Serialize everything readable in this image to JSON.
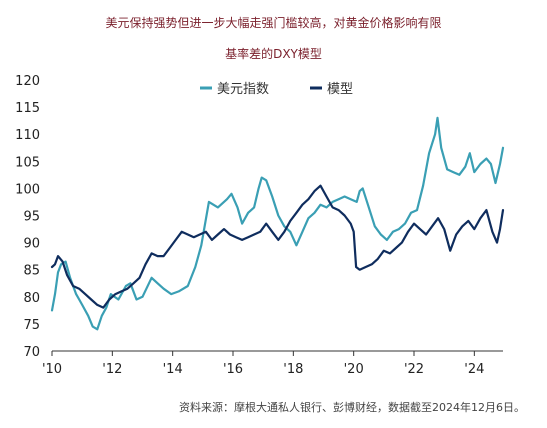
{
  "title_line1": "美元保持强势但进一步大幅走强门槛较高，对黄金价格影响有限",
  "title_line2": "基率差的DXY模型",
  "source": "资料来源：摩根大通私人银行、彭博财经，数据截至2024年12月6日。",
  "chart_data": {
    "type": "line",
    "title": "美元保持强势但进一步大幅走强门槛较高，对黄金价格影响有限",
    "subtitle": "基率差的DXY模型",
    "xlabel": "",
    "ylabel": "",
    "ylim": [
      70,
      120
    ],
    "yticks": [
      70,
      75,
      80,
      85,
      90,
      95,
      100,
      105,
      110,
      115,
      120
    ],
    "xlim": [
      2010.0,
      2024.95
    ],
    "xticks": [
      2010,
      2012,
      2014,
      2016,
      2018,
      2020,
      2022,
      2024
    ],
    "xtick_labels": [
      "'10",
      "'12",
      "'14",
      "'16",
      "'18",
      "'20",
      "'22",
      "'24"
    ],
    "grid": false,
    "legend_position": "top-left",
    "series": [
      {
        "name": "美元指数",
        "color": "#3a9fb4",
        "x": [
          2010.0,
          2010.1,
          2010.2,
          2010.3,
          2010.45,
          2010.6,
          2010.8,
          2010.9,
          2011.0,
          2011.2,
          2011.35,
          2011.5,
          2011.65,
          2011.8,
          2011.95,
          2012.2,
          2012.45,
          2012.6,
          2012.8,
          2013.0,
          2013.3,
          2013.5,
          2013.7,
          2013.95,
          2014.2,
          2014.5,
          2014.75,
          2014.95,
          2015.2,
          2015.5,
          2015.8,
          2015.95,
          2016.15,
          2016.3,
          2016.5,
          2016.7,
          2016.85,
          2016.95,
          2017.1,
          2017.3,
          2017.5,
          2017.7,
          2017.9,
          2018.1,
          2018.3,
          2018.5,
          2018.7,
          2018.9,
          2019.1,
          2019.3,
          2019.5,
          2019.7,
          2019.9,
          2020.1,
          2020.2,
          2020.3,
          2020.5,
          2020.7,
          2020.9,
          2021.1,
          2021.3,
          2021.5,
          2021.7,
          2021.9,
          2022.1,
          2022.3,
          2022.5,
          2022.7,
          2022.78,
          2022.9,
          2023.1,
          2023.3,
          2023.5,
          2023.7,
          2023.85,
          2024.0,
          2024.2,
          2024.4,
          2024.55,
          2024.7,
          2024.85,
          2024.95
        ],
        "y": [
          77.5,
          80.5,
          84.5,
          86.0,
          86.5,
          83.5,
          80.5,
          79.5,
          78.5,
          76.5,
          74.5,
          74.0,
          76.5,
          78.0,
          80.5,
          79.5,
          82.0,
          82.5,
          79.5,
          80.0,
          83.5,
          82.5,
          81.5,
          80.5,
          81.0,
          82.0,
          85.5,
          89.5,
          97.5,
          96.5,
          98.0,
          99.0,
          96.5,
          93.5,
          95.5,
          96.5,
          100.0,
          102.0,
          101.5,
          98.5,
          95.0,
          93.0,
          92.0,
          89.5,
          92.0,
          94.5,
          95.5,
          97.0,
          96.5,
          97.5,
          98.0,
          98.5,
          98.0,
          97.5,
          99.5,
          100.0,
          96.5,
          93.0,
          91.5,
          90.5,
          92.0,
          92.5,
          93.5,
          95.5,
          96.0,
          100.5,
          106.5,
          110.0,
          113.0,
          107.5,
          103.5,
          103.0,
          102.5,
          104.0,
          106.5,
          103.0,
          104.5,
          105.5,
          104.5,
          101.0,
          104.5,
          107.5
        ]
      },
      {
        "name": "模型",
        "color": "#0f2d5e",
        "x": [
          2010.0,
          2010.1,
          2010.2,
          2010.35,
          2010.5,
          2010.7,
          2010.9,
          2011.1,
          2011.3,
          2011.5,
          2011.7,
          2011.9,
          2012.1,
          2012.3,
          2012.5,
          2012.7,
          2012.9,
          2013.1,
          2013.3,
          2013.5,
          2013.7,
          2013.9,
          2014.1,
          2014.3,
          2014.5,
          2014.7,
          2014.9,
          2015.1,
          2015.3,
          2015.5,
          2015.7,
          2015.9,
          2016.1,
          2016.3,
          2016.5,
          2016.7,
          2016.9,
          2017.1,
          2017.3,
          2017.5,
          2017.7,
          2017.9,
          2018.1,
          2018.3,
          2018.5,
          2018.7,
          2018.9,
          2019.1,
          2019.3,
          2019.5,
          2019.7,
          2019.9,
          2020.0,
          2020.08,
          2020.2,
          2020.4,
          2020.6,
          2020.8,
          2021.0,
          2021.2,
          2021.4,
          2021.6,
          2021.8,
          2022.0,
          2022.2,
          2022.4,
          2022.6,
          2022.8,
          2023.0,
          2023.2,
          2023.4,
          2023.6,
          2023.8,
          2024.0,
          2024.2,
          2024.4,
          2024.6,
          2024.75,
          2024.85,
          2024.95
        ],
        "y": [
          85.5,
          86.0,
          87.5,
          86.5,
          84.0,
          82.0,
          81.5,
          80.5,
          79.5,
          78.5,
          78.0,
          79.5,
          80.5,
          81.0,
          81.5,
          82.5,
          83.5,
          86.0,
          88.0,
          87.5,
          87.5,
          89.0,
          90.5,
          92.0,
          91.5,
          91.0,
          91.5,
          92.0,
          90.5,
          91.5,
          92.5,
          91.5,
          91.0,
          90.5,
          91.0,
          91.5,
          92.0,
          93.5,
          92.0,
          90.5,
          92.0,
          94.0,
          95.5,
          97.0,
          98.0,
          99.5,
          100.5,
          98.5,
          96.5,
          96.0,
          95.0,
          93.5,
          92.0,
          85.5,
          85.0,
          85.5,
          86.0,
          87.0,
          88.5,
          88.0,
          89.0,
          90.0,
          92.0,
          93.5,
          92.5,
          91.5,
          93.0,
          94.5,
          92.5,
          88.5,
          91.5,
          93.0,
          94.0,
          92.5,
          94.5,
          96.0,
          92.0,
          90.0,
          92.5,
          96.0
        ]
      }
    ]
  }
}
